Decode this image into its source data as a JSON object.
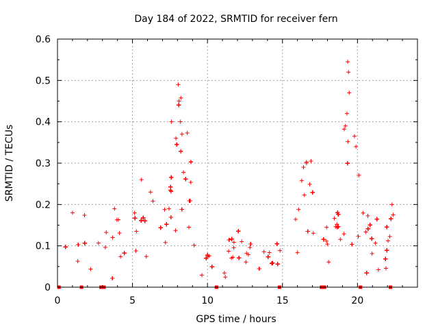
{
  "chart_data": {
    "type": "scatter",
    "title": "Day 184 of 2022, SRMTID for receiver fern",
    "xlabel": "GPS time / hours",
    "ylabel": "SRMTID / TECUs",
    "xlim": [
      0,
      24
    ],
    "ylim": [
      0,
      0.6
    ],
    "xticks": [
      0,
      5,
      10,
      15,
      20
    ],
    "yticks": [
      0,
      0.1,
      0.2,
      0.3,
      0.4,
      0.5,
      0.6
    ],
    "xtick_labels": [
      "0",
      "5",
      "10",
      "15",
      "20"
    ],
    "ytick_labels": [
      "0",
      "0.1",
      "0.2",
      "0.3",
      "0.4",
      "0.5",
      "0.6"
    ],
    "grid": true,
    "marker": "+",
    "color": "#ff0000",
    "series": [
      {
        "name": "SRMTID",
        "profile": [
          {
            "x": 0.0,
            "y": 0.07
          },
          {
            "x": 1.0,
            "y": 0.09
          },
          {
            "x": 2.0,
            "y": 0.1
          },
          {
            "x": 3.0,
            "y": 0.09
          },
          {
            "x": 3.5,
            "y": 0.14
          },
          {
            "x": 4.5,
            "y": 0.12
          },
          {
            "x": 5.5,
            "y": 0.16
          },
          {
            "x": 6.5,
            "y": 0.17
          },
          {
            "x": 7.2,
            "y": 0.14
          },
          {
            "x": 7.8,
            "y": 0.25
          },
          {
            "x": 8.3,
            "y": 0.28
          },
          {
            "x": 8.8,
            "y": 0.22
          },
          {
            "x": 9.2,
            "y": 0.1
          },
          {
            "x": 10.0,
            "y": 0.06
          },
          {
            "x": 11.0,
            "y": 0.07
          },
          {
            "x": 12.0,
            "y": 0.08
          },
          {
            "x": 13.0,
            "y": 0.06
          },
          {
            "x": 14.0,
            "y": 0.07
          },
          {
            "x": 15.0,
            "y": 0.07
          },
          {
            "x": 15.8,
            "y": 0.1
          },
          {
            "x": 16.3,
            "y": 0.17
          },
          {
            "x": 16.8,
            "y": 0.2
          },
          {
            "x": 17.3,
            "y": 0.1
          },
          {
            "x": 18.0,
            "y": 0.09
          },
          {
            "x": 18.7,
            "y": 0.12
          },
          {
            "x": 19.3,
            "y": 0.28
          },
          {
            "x": 19.8,
            "y": 0.26
          },
          {
            "x": 20.3,
            "y": 0.14
          },
          {
            "x": 21.0,
            "y": 0.09
          },
          {
            "x": 22.0,
            "y": 0.09
          },
          {
            "x": 22.5,
            "y": 0.14
          },
          {
            "x": 22.8,
            "y": 0.15
          }
        ],
        "peaks": [
          {
            "x": 8.05,
            "y": 0.49
          },
          {
            "x": 8.1,
            "y": 0.45
          },
          {
            "x": 7.6,
            "y": 0.4
          },
          {
            "x": 8.2,
            "y": 0.4
          },
          {
            "x": 8.3,
            "y": 0.37
          },
          {
            "x": 7.9,
            "y": 0.36
          },
          {
            "x": 16.9,
            "y": 0.305
          },
          {
            "x": 16.6,
            "y": 0.3
          },
          {
            "x": 16.4,
            "y": 0.29
          },
          {
            "x": 19.35,
            "y": 0.545
          },
          {
            "x": 19.4,
            "y": 0.52
          },
          {
            "x": 19.45,
            "y": 0.47
          },
          {
            "x": 19.3,
            "y": 0.42
          },
          {
            "x": 19.2,
            "y": 0.39
          },
          {
            "x": 19.8,
            "y": 0.365
          },
          {
            "x": 19.9,
            "y": 0.34
          },
          {
            "x": 22.3,
            "y": 0.2
          },
          {
            "x": 5.6,
            "y": 0.26
          },
          {
            "x": 6.2,
            "y": 0.23
          },
          {
            "x": 1.0,
            "y": 0.18
          },
          {
            "x": 3.8,
            "y": 0.19
          }
        ],
        "zero_markers_x": [
          0.1,
          1.6,
          2.9,
          3.1,
          10.6,
          14.8,
          17.6,
          17.8,
          20.2,
          22.2
        ]
      }
    ]
  }
}
